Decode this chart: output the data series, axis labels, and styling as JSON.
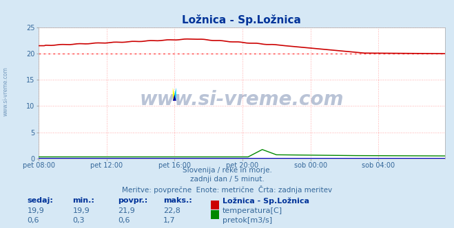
{
  "title": "Ložnica - Sp.Ložnica",
  "title_color": "#003399",
  "bg_color": "#d6e8f5",
  "plot_bg_color": "#ffffff",
  "grid_color": "#ffaaaa",
  "text_color": "#336699",
  "figsize": [
    6.59,
    3.32
  ],
  "dpi": 100,
  "xlim": [
    0,
    287
  ],
  "ylim": [
    0,
    25
  ],
  "yticks": [
    0,
    5,
    10,
    15,
    20,
    25
  ],
  "xtick_labels": [
    "pet 08:00",
    "pet 12:00",
    "pet 16:00",
    "pet 20:00",
    "sob 00:00",
    "sob 04:00"
  ],
  "xtick_positions": [
    0,
    48,
    96,
    144,
    192,
    240
  ],
  "avg_line_value": 20,
  "avg_line_color": "#ff4444",
  "temp_color": "#cc0000",
  "flow_color": "#008800",
  "height_color": "#0000cc",
  "watermark_text": "www.si-vreme.com",
  "watermark_color": "#1a3a7a",
  "watermark_alpha": 0.3,
  "footer_line1": "Slovenija / reke in morje.",
  "footer_line2": "zadnji dan / 5 minut.",
  "footer_line3": "Meritve: povprečne  Enote: metrične  Črta: zadnja meritev",
  "legend_title": "Ložnica - Sp.Ložnica",
  "legend_items": [
    "temperatura[C]",
    "pretok[m3/s]"
  ],
  "legend_colors": [
    "#cc0000",
    "#008800"
  ],
  "stats_headers": [
    "sedaj:",
    "min.:",
    "povpr.:",
    "maks.:"
  ],
  "stats_temp": [
    "19,9",
    "19,9",
    "21,9",
    "22,8"
  ],
  "stats_flow": [
    "0,6",
    "0,3",
    "0,6",
    "1,7"
  ],
  "left_label": "www.si-vreme.com"
}
